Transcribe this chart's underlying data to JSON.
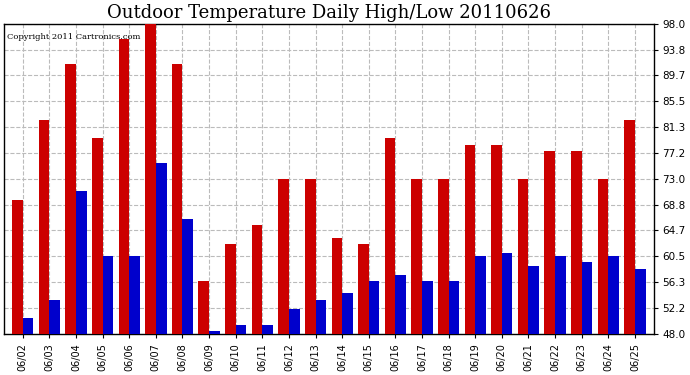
{
  "title": "Outdoor Temperature Daily High/Low 20110626",
  "copyright": "Copyright 2011 Cartronics.com",
  "dates": [
    "06/02",
    "06/03",
    "06/04",
    "06/05",
    "06/06",
    "06/07",
    "06/08",
    "06/09",
    "06/10",
    "06/11",
    "06/12",
    "06/13",
    "06/14",
    "06/15",
    "06/16",
    "06/17",
    "06/18",
    "06/19",
    "06/20",
    "06/21",
    "06/22",
    "06/23",
    "06/24",
    "06/25"
  ],
  "highs": [
    69.5,
    82.5,
    91.5,
    79.5,
    95.5,
    98.0,
    91.5,
    56.5,
    62.5,
    65.5,
    73.0,
    73.0,
    63.5,
    62.5,
    79.5,
    73.0,
    73.0,
    78.5,
    78.5,
    73.0,
    77.5,
    77.5,
    73.0,
    82.5
  ],
  "lows": [
    50.5,
    53.5,
    71.0,
    60.5,
    60.5,
    75.5,
    66.5,
    48.5,
    49.5,
    49.5,
    52.0,
    53.5,
    54.5,
    56.5,
    57.5,
    56.5,
    56.5,
    60.5,
    61.0,
    59.0,
    60.5,
    59.5,
    60.5,
    58.5
  ],
  "high_color": "#cc0000",
  "low_color": "#0000cc",
  "bg_color": "#ffffff",
  "plot_bg_color": "#ffffff",
  "grid_color": "#bbbbbb",
  "yticks": [
    48.0,
    52.2,
    56.3,
    60.5,
    64.7,
    68.8,
    73.0,
    77.2,
    81.3,
    85.5,
    89.7,
    93.8,
    98.0
  ],
  "ylim": [
    48.0,
    98.0
  ],
  "title_fontsize": 13,
  "bar_width": 0.4,
  "figwidth": 6.9,
  "figheight": 3.75,
  "dpi": 100
}
